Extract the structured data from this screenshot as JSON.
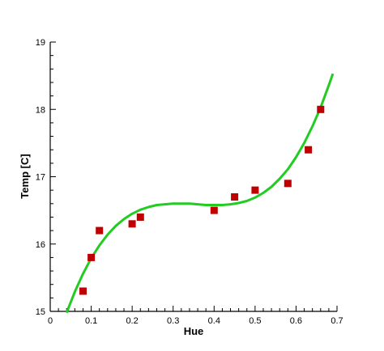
{
  "chart_data": {
    "type": "scatter",
    "title": "",
    "xlabel": "Hue",
    "ylabel": "Temp [C]",
    "xlim": [
      0,
      0.7
    ],
    "ylim": [
      15,
      19
    ],
    "x_ticks": [
      "0",
      "0.1",
      "0.2",
      "0.3",
      "0.4",
      "0.5",
      "0.6",
      "0.7"
    ],
    "y_ticks": [
      "15",
      "16",
      "17",
      "18",
      "19"
    ],
    "grid": false,
    "legend": "none",
    "series": [
      {
        "kind": "points",
        "marker": "square",
        "color": "#c00000",
        "points": [
          {
            "x": 0.08,
            "y": 15.3
          },
          {
            "x": 0.1,
            "y": 15.8
          },
          {
            "x": 0.12,
            "y": 16.2
          },
          {
            "x": 0.2,
            "y": 16.3
          },
          {
            "x": 0.22,
            "y": 16.4
          },
          {
            "x": 0.4,
            "y": 16.5
          },
          {
            "x": 0.45,
            "y": 16.7
          },
          {
            "x": 0.5,
            "y": 16.8
          },
          {
            "x": 0.58,
            "y": 16.9
          },
          {
            "x": 0.63,
            "y": 17.4
          },
          {
            "x": 0.66,
            "y": 18.0
          }
        ]
      },
      {
        "kind": "line",
        "color": "#22cc22",
        "points": [
          {
            "x": 0.04,
            "y": 14.98
          },
          {
            "x": 0.06,
            "y": 15.29
          },
          {
            "x": 0.08,
            "y": 15.56
          },
          {
            "x": 0.1,
            "y": 15.79
          },
          {
            "x": 0.12,
            "y": 15.98
          },
          {
            "x": 0.14,
            "y": 16.14
          },
          {
            "x": 0.16,
            "y": 16.27
          },
          {
            "x": 0.18,
            "y": 16.37
          },
          {
            "x": 0.2,
            "y": 16.45
          },
          {
            "x": 0.22,
            "y": 16.51
          },
          {
            "x": 0.24,
            "y": 16.55
          },
          {
            "x": 0.26,
            "y": 16.58
          },
          {
            "x": 0.28,
            "y": 16.59
          },
          {
            "x": 0.3,
            "y": 16.6
          },
          {
            "x": 0.32,
            "y": 16.6
          },
          {
            "x": 0.34,
            "y": 16.6
          },
          {
            "x": 0.36,
            "y": 16.59
          },
          {
            "x": 0.38,
            "y": 16.58
          },
          {
            "x": 0.4,
            "y": 16.58
          },
          {
            "x": 0.42,
            "y": 16.58
          },
          {
            "x": 0.44,
            "y": 16.59
          },
          {
            "x": 0.46,
            "y": 16.61
          },
          {
            "x": 0.48,
            "y": 16.64
          },
          {
            "x": 0.5,
            "y": 16.69
          },
          {
            "x": 0.52,
            "y": 16.76
          },
          {
            "x": 0.54,
            "y": 16.85
          },
          {
            "x": 0.56,
            "y": 16.97
          },
          {
            "x": 0.58,
            "y": 17.11
          },
          {
            "x": 0.6,
            "y": 17.29
          },
          {
            "x": 0.62,
            "y": 17.5
          },
          {
            "x": 0.64,
            "y": 17.75
          },
          {
            "x": 0.66,
            "y": 18.03
          },
          {
            "x": 0.68,
            "y": 18.36
          },
          {
            "x": 0.69,
            "y": 18.53
          }
        ]
      }
    ]
  }
}
